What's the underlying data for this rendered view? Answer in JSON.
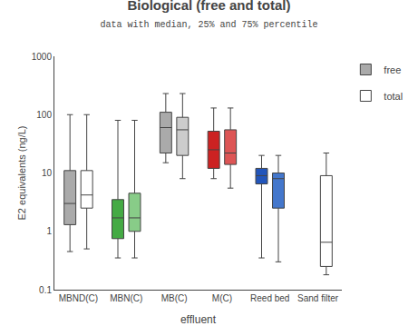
{
  "chart_data": {
    "type": "box",
    "title": "Biological (free and total)",
    "subtitle": "data with median, 25% and 75% percentile",
    "xlabel": "effluent",
    "ylabel": "E2 equivalents (ng/L)",
    "categories": [
      "MBND(C)",
      "MBN(C)",
      "MB(C)",
      "M(C)",
      "Reed bed",
      "Sand filter"
    ],
    "series": [
      {
        "name": "free",
        "colors": [
          "#aaaaaa",
          "#44aa44",
          "#aaaaaa",
          "#cc2222",
          "#2255bb",
          null
        ],
        "min": [
          0.45,
          0.35,
          15.0,
          8.0,
          0.35,
          null
        ],
        "q1": [
          1.3,
          0.75,
          22.0,
          12.0,
          6.5,
          null
        ],
        "median": [
          3.0,
          1.7,
          60.0,
          25.0,
          9.0,
          null
        ],
        "q3": [
          11.0,
          3.5,
          110.0,
          52.0,
          12.0,
          null
        ],
        "max": [
          100,
          80,
          230,
          130,
          20,
          null
        ]
      },
      {
        "name": "total",
        "colors": [
          "#ffffff",
          "#88cc88",
          "#cccccc",
          "#dd5555",
          "#4477cc",
          "#ffffff"
        ],
        "min": [
          0.5,
          0.35,
          8.0,
          5.5,
          0.3,
          0.18
        ],
        "q1": [
          2.5,
          1.0,
          20.0,
          14.0,
          2.5,
          0.25
        ],
        "median": [
          4.2,
          1.7,
          55.0,
          22.0,
          8.0,
          0.65
        ],
        "q3": [
          11.0,
          4.5,
          90.0,
          55.0,
          10.0,
          9.0
        ],
        "max": [
          100,
          80,
          230,
          130,
          20,
          22
        ]
      }
    ],
    "log": "y",
    "ylim": [
      0.1,
      1000
    ],
    "yticks": [
      0.1,
      1,
      10,
      100,
      1000
    ],
    "grid": false,
    "legend": "right"
  }
}
